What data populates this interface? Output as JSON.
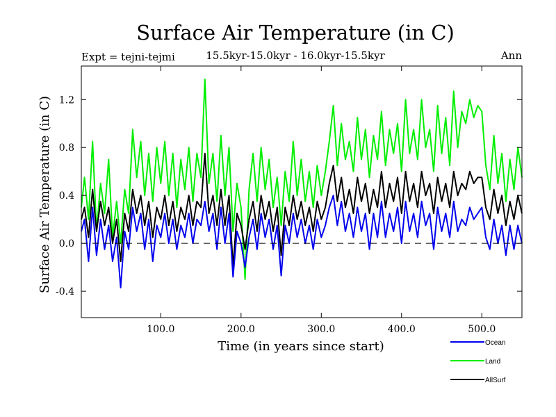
{
  "chart_data": {
    "type": "line",
    "title": "Surface Air Temperature (in C)",
    "subtitle": "15.5kyr-15.0kyr - 16.0kyr-15.5kyr",
    "expt_label": "Expt = tejni-tejmi",
    "season_label": "Ann",
    "xlabel": "Time (in years since start)",
    "ylabel": "Surface Air Temperature (in C)",
    "xlim": [
      1,
      550
    ],
    "ylim": [
      -0.62,
      1.48
    ],
    "x_ticks": [
      100,
      200,
      300,
      400,
      500
    ],
    "x_tick_labels": [
      "100.0",
      "200.0",
      "300.0",
      "400.0",
      "500.0"
    ],
    "y_ticks": [
      -0.4,
      0.0,
      0.4,
      0.8,
      1.2
    ],
    "y_tick_labels": [
      "-0.4",
      "0.0",
      "0.4",
      "0.8",
      "1.2"
    ],
    "zero_line": 0.0,
    "series": [
      {
        "name": "Land",
        "color": "#00ee00",
        "x": [
          1,
          5,
          10,
          15,
          20,
          25,
          30,
          35,
          40,
          45,
          50,
          55,
          60,
          65,
          70,
          75,
          80,
          85,
          90,
          95,
          100,
          105,
          110,
          115,
          120,
          125,
          130,
          135,
          140,
          145,
          150,
          155,
          160,
          165,
          170,
          175,
          180,
          185,
          190,
          195,
          200,
          205,
          210,
          215,
          220,
          225,
          230,
          235,
          240,
          245,
          250,
          255,
          260,
          265,
          270,
          275,
          280,
          285,
          290,
          295,
          300,
          305,
          310,
          315,
          320,
          325,
          330,
          335,
          340,
          345,
          350,
          355,
          360,
          365,
          370,
          375,
          380,
          385,
          390,
          395,
          400,
          405,
          410,
          415,
          420,
          425,
          430,
          435,
          440,
          445,
          450,
          455,
          460,
          465,
          470,
          475,
          480,
          485,
          490,
          495,
          500,
          505,
          510,
          515,
          520,
          525,
          530,
          535,
          540,
          545,
          550
        ],
        "values": [
          0.3,
          0.55,
          0.2,
          0.85,
          0.1,
          0.5,
          0.25,
          0.7,
          0.05,
          0.35,
          0.0,
          0.45,
          0.25,
          0.95,
          0.55,
          0.85,
          0.4,
          0.75,
          0.35,
          0.8,
          0.5,
          0.85,
          0.4,
          0.75,
          0.3,
          0.7,
          0.45,
          0.8,
          0.35,
          0.75,
          0.55,
          1.37,
          0.5,
          0.75,
          0.35,
          0.9,
          0.4,
          0.8,
          0.1,
          0.5,
          0.3,
          -0.3,
          0.45,
          0.75,
          0.35,
          0.8,
          0.45,
          0.7,
          0.3,
          0.55,
          0.15,
          0.6,
          0.35,
          0.85,
          0.4,
          0.7,
          0.35,
          0.6,
          0.3,
          0.65,
          0.4,
          0.6,
          0.85,
          1.15,
          0.65,
          1.0,
          0.7,
          0.85,
          0.6,
          1.05,
          0.7,
          0.95,
          0.55,
          0.9,
          0.7,
          1.1,
          0.65,
          0.95,
          0.75,
          1.0,
          0.6,
          1.2,
          0.75,
          0.95,
          0.7,
          1.2,
          0.8,
          0.95,
          0.6,
          1.15,
          0.75,
          1.05,
          0.65,
          1.27,
          0.8,
          1.1,
          1.0,
          1.2,
          1.05,
          1.15,
          1.1,
          0.65,
          0.45,
          0.9,
          0.5,
          0.75,
          0.35,
          0.7,
          0.45,
          0.8,
          0.55
        ]
      },
      {
        "name": "AllSurf",
        "color": "#000000",
        "x": [
          1,
          5,
          10,
          15,
          20,
          25,
          30,
          35,
          40,
          45,
          50,
          55,
          60,
          65,
          70,
          75,
          80,
          85,
          90,
          95,
          100,
          105,
          110,
          115,
          120,
          125,
          130,
          135,
          140,
          145,
          150,
          155,
          160,
          165,
          170,
          175,
          180,
          185,
          190,
          195,
          200,
          205,
          210,
          215,
          220,
          225,
          230,
          235,
          240,
          245,
          250,
          255,
          260,
          265,
          270,
          275,
          280,
          285,
          290,
          295,
          300,
          305,
          310,
          315,
          320,
          325,
          330,
          335,
          340,
          345,
          350,
          355,
          360,
          365,
          370,
          375,
          380,
          385,
          390,
          395,
          400,
          405,
          410,
          415,
          420,
          425,
          430,
          435,
          440,
          445,
          450,
          455,
          460,
          465,
          470,
          475,
          480,
          485,
          490,
          495,
          500,
          505,
          510,
          515,
          520,
          525,
          530,
          535,
          540,
          545,
          550
        ],
        "values": [
          0.2,
          0.3,
          0.05,
          0.45,
          0.1,
          0.35,
          0.15,
          0.3,
          0.0,
          0.2,
          -0.15,
          0.25,
          0.1,
          0.45,
          0.25,
          0.4,
          0.15,
          0.35,
          0.05,
          0.3,
          0.2,
          0.4,
          0.15,
          0.35,
          0.1,
          0.3,
          0.2,
          0.4,
          0.15,
          0.35,
          0.3,
          0.75,
          0.25,
          0.4,
          0.15,
          0.45,
          0.15,
          0.4,
          -0.2,
          0.25,
          0.15,
          -0.05,
          0.2,
          0.35,
          0.1,
          0.4,
          0.2,
          0.35,
          0.1,
          0.3,
          -0.1,
          0.3,
          0.15,
          0.4,
          0.2,
          0.35,
          0.15,
          0.3,
          0.1,
          0.35,
          0.2,
          0.3,
          0.5,
          0.65,
          0.35,
          0.55,
          0.3,
          0.45,
          0.25,
          0.55,
          0.35,
          0.5,
          0.25,
          0.45,
          0.3,
          0.6,
          0.3,
          0.5,
          0.35,
          0.55,
          0.25,
          0.6,
          0.35,
          0.5,
          0.3,
          0.6,
          0.4,
          0.5,
          0.25,
          0.55,
          0.35,
          0.5,
          0.3,
          0.6,
          0.4,
          0.5,
          0.45,
          0.6,
          0.5,
          0.55,
          0.55,
          0.3,
          0.2,
          0.45,
          0.25,
          0.4,
          0.15,
          0.35,
          0.2,
          0.4,
          0.25
        ]
      },
      {
        "name": "Ocean",
        "color": "#0000ee",
        "x": [
          1,
          5,
          10,
          15,
          20,
          25,
          30,
          35,
          40,
          45,
          50,
          55,
          60,
          65,
          70,
          75,
          80,
          85,
          90,
          95,
          100,
          105,
          110,
          115,
          120,
          125,
          130,
          135,
          140,
          145,
          150,
          155,
          160,
          165,
          170,
          175,
          180,
          185,
          190,
          195,
          200,
          205,
          210,
          215,
          220,
          225,
          230,
          235,
          240,
          245,
          250,
          255,
          260,
          265,
          270,
          275,
          280,
          285,
          290,
          295,
          300,
          305,
          310,
          315,
          320,
          325,
          330,
          335,
          340,
          345,
          350,
          355,
          360,
          365,
          370,
          375,
          380,
          385,
          390,
          395,
          400,
          405,
          410,
          415,
          420,
          425,
          430,
          435,
          440,
          445,
          450,
          455,
          460,
          465,
          470,
          475,
          480,
          485,
          490,
          495,
          500,
          505,
          510,
          515,
          520,
          525,
          530,
          535,
          540,
          545,
          550
        ],
        "values": [
          0.1,
          0.2,
          -0.15,
          0.3,
          -0.1,
          0.2,
          -0.05,
          0.15,
          -0.15,
          0.05,
          -0.37,
          0.1,
          -0.05,
          0.3,
          0.1,
          0.25,
          -0.05,
          0.2,
          -0.15,
          0.15,
          0.05,
          0.25,
          0.0,
          0.2,
          -0.05,
          0.15,
          0.05,
          0.25,
          0.0,
          0.2,
          0.15,
          0.35,
          0.1,
          0.25,
          -0.05,
          0.3,
          0.0,
          0.25,
          -0.28,
          0.1,
          0.0,
          -0.2,
          0.05,
          0.2,
          -0.05,
          0.25,
          0.05,
          0.2,
          -0.05,
          0.15,
          -0.27,
          0.15,
          0.0,
          0.25,
          0.05,
          0.2,
          0.0,
          0.15,
          -0.05,
          0.2,
          0.05,
          0.15,
          0.3,
          0.4,
          0.15,
          0.35,
          0.1,
          0.25,
          0.05,
          0.3,
          0.1,
          0.25,
          -0.05,
          0.25,
          0.05,
          0.35,
          0.05,
          0.25,
          0.1,
          0.3,
          0.0,
          0.35,
          0.1,
          0.25,
          0.05,
          0.35,
          0.15,
          0.25,
          -0.05,
          0.3,
          0.1,
          0.25,
          0.05,
          0.35,
          0.1,
          0.2,
          0.15,
          0.3,
          0.2,
          0.25,
          0.3,
          0.05,
          -0.05,
          0.2,
          0.0,
          0.15,
          -0.1,
          0.15,
          -0.05,
          0.15,
          0.0
        ]
      }
    ],
    "legend": {
      "placement": "bottom-right",
      "entries": [
        {
          "name": "Ocean",
          "color": "#0000ee"
        },
        {
          "name": "Land",
          "color": "#00ee00"
        },
        {
          "name": "AllSurf",
          "color": "#000000"
        }
      ]
    }
  }
}
